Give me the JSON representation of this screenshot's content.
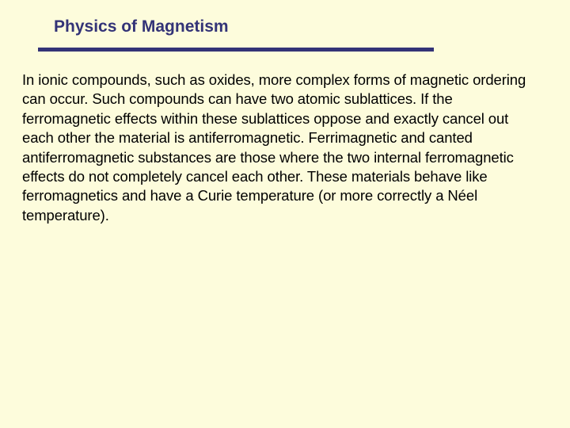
{
  "slide": {
    "background_color": "#fdfcdc",
    "title": "Physics of Magnetism",
    "title_color": "#333377",
    "title_fontsize": 21,
    "rule_color": "#333377",
    "rule_width": 500,
    "rule_height": 5,
    "body_color": "#000000",
    "body_fontsize": 18.5,
    "body": "In ionic compounds, such as oxides, more complex forms of magnetic ordering can occur.  Such compounds can have two atomic sublattices.  If the ferromagnetic effects within these sublattices oppose and exactly cancel out each other the material is antiferromagnetic.  Ferrimagnetic and canted antiferromagnetic substances are those where the two internal ferromagnetic effects do not completely cancel each other.  These materials behave like ferromagnetics and have a Curie temperature (or more correctly a Néel temperature)."
  }
}
